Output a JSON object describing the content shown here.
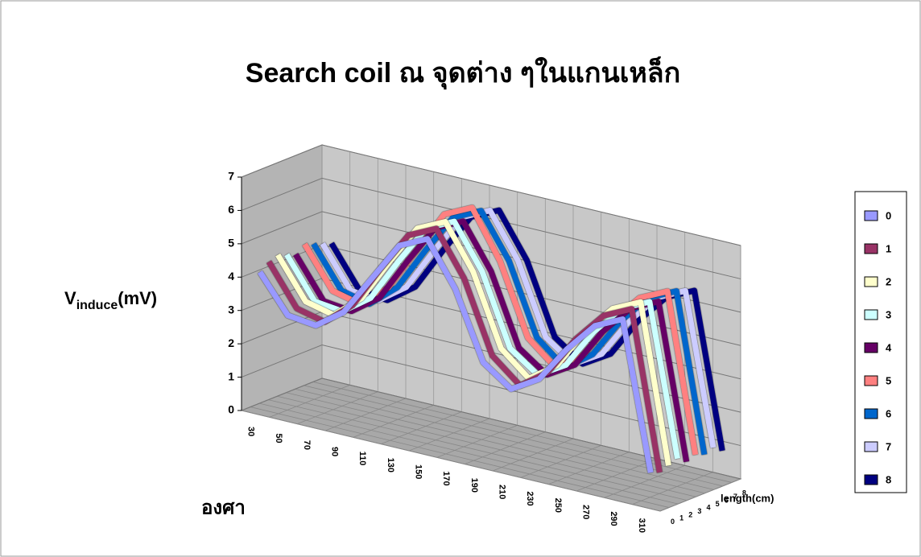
{
  "chart_data": {
    "type": "line3d",
    "title": "Search coil ณ จุดต่าง ๆในแกนเหล็ก",
    "y_label": {
      "main": "V",
      "sub": "induce",
      "unit": "(mV)"
    },
    "x_label": "องศา",
    "z_label": "length(cm)",
    "categories": [
      "30",
      "50",
      "70",
      "90",
      "110",
      "130",
      "150",
      "170",
      "190",
      "210",
      "230",
      "250",
      "270",
      "290",
      "310"
    ],
    "ylim": [
      0,
      7
    ],
    "yticks": [
      0,
      1,
      2,
      3,
      4,
      5,
      6,
      7
    ],
    "grid": true,
    "legend": "right",
    "series": [
      {
        "name": "0",
        "color": "#9999ff",
        "values": [
          4.2,
          3.1,
          3.0,
          3.6,
          4.8,
          6.0,
          6.4,
          5.1,
          3.1,
          2.5,
          3.0,
          4.1,
          5.0,
          5.4,
          1.0
        ]
      },
      {
        "name": "1",
        "color": "#993366",
        "values": [
          4.4,
          3.2,
          3.0,
          3.7,
          5.0,
          6.2,
          6.6,
          5.3,
          3.2,
          2.5,
          3.1,
          4.3,
          5.2,
          5.6,
          0.9
        ]
      },
      {
        "name": "2",
        "color": "#ffffcc",
        "values": [
          4.5,
          3.3,
          3.1,
          3.8,
          5.1,
          6.3,
          6.7,
          5.4,
          3.3,
          2.6,
          3.2,
          4.4,
          5.3,
          5.7,
          1.0
        ]
      },
      {
        "name": "3",
        "color": "#ccffff",
        "values": [
          4.4,
          3.2,
          3.1,
          3.7,
          5.0,
          6.2,
          6.6,
          5.3,
          3.2,
          2.6,
          3.1,
          4.3,
          5.2,
          5.6,
          1.1
        ]
      },
      {
        "name": "4",
        "color": "#660066",
        "values": [
          4.3,
          3.1,
          3.0,
          3.6,
          4.9,
          6.1,
          6.5,
          5.2,
          3.1,
          2.5,
          3.0,
          4.2,
          5.1,
          5.5,
          0.9
        ]
      },
      {
        "name": "5",
        "color": "#ff8080",
        "values": [
          4.5,
          3.3,
          3.1,
          3.8,
          5.1,
          6.4,
          6.8,
          5.4,
          3.3,
          2.6,
          3.2,
          4.4,
          5.3,
          5.7,
          1.0
        ]
      },
      {
        "name": "6",
        "color": "#0066cc",
        "values": [
          4.4,
          3.2,
          3.0,
          3.7,
          5.0,
          6.2,
          6.6,
          5.3,
          3.2,
          2.5,
          3.1,
          4.3,
          5.2,
          5.6,
          0.9
        ]
      },
      {
        "name": "7",
        "color": "#ccccff",
        "values": [
          4.3,
          3.1,
          3.0,
          3.6,
          4.9,
          6.1,
          6.5,
          5.2,
          3.1,
          2.5,
          3.0,
          4.2,
          5.1,
          5.5,
          1.0
        ]
      },
      {
        "name": "8",
        "color": "#000080",
        "values": [
          4.2,
          3.0,
          2.9,
          3.5,
          4.8,
          6.0,
          6.4,
          5.1,
          3.0,
          2.4,
          2.9,
          4.1,
          5.0,
          5.4,
          0.8
        ]
      }
    ]
  }
}
